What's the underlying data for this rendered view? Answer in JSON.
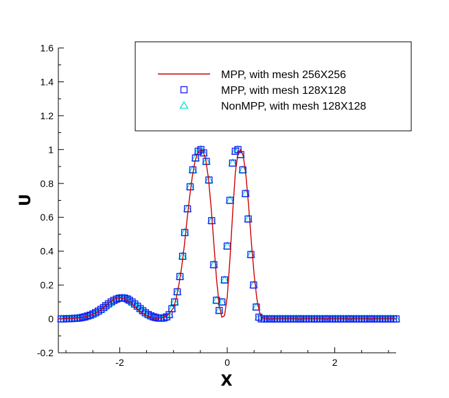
{
  "chart_data": {
    "type": "line",
    "title": "",
    "xlabel": "X",
    "ylabel": "U",
    "xlim": [
      -3.14159,
      3.14159
    ],
    "ylim": [
      -0.2,
      1.6
    ],
    "xticks": [
      -2,
      0,
      2
    ],
    "xtick_labels": [
      "-2",
      "0",
      "2"
    ],
    "yticks": [
      -0.2,
      0,
      0.2,
      0.4,
      0.6,
      0.8,
      1,
      1.2,
      1.4,
      1.6
    ],
    "ytick_labels": [
      "-0.2",
      "0",
      "0.2",
      "0.4",
      "0.6",
      "0.8",
      "1",
      "1.2",
      "1.4",
      "1.6"
    ],
    "grid": false,
    "legend_position": "top-right",
    "series": [
      {
        "name": "MPP, with mesh 256X256",
        "style": "line",
        "color": "#cc0000",
        "x": [
          -3.1416,
          -2.9,
          -2.7,
          -2.55,
          -2.4,
          -2.3,
          -2.2,
          -2.1,
          -2.0,
          -1.9,
          -1.8,
          -1.7,
          -1.6,
          -1.5,
          -1.4,
          -1.3,
          -1.2,
          -1.1,
          -1.0,
          -0.95,
          -0.9,
          -0.85,
          -0.8,
          -0.75,
          -0.7,
          -0.65,
          -0.6,
          -0.55,
          -0.5,
          -0.45,
          -0.4,
          -0.35,
          -0.3,
          -0.25,
          -0.2,
          -0.15,
          -0.1,
          -0.05,
          0.0,
          0.05,
          0.1,
          0.15,
          0.2,
          0.25,
          0.3,
          0.35,
          0.4,
          0.45,
          0.5,
          0.55,
          0.6,
          0.65,
          0.7,
          0.8,
          1.0,
          1.5,
          2.0,
          2.5,
          3.1416
        ],
        "y": [
          0.0,
          0.002,
          0.008,
          0.02,
          0.042,
          0.066,
          0.095,
          0.117,
          0.125,
          0.117,
          0.095,
          0.066,
          0.038,
          0.018,
          0.008,
          0.004,
          0.008,
          0.025,
          0.065,
          0.12,
          0.2,
          0.3,
          0.43,
          0.58,
          0.72,
          0.84,
          0.93,
          0.98,
          1.0,
          0.99,
          0.94,
          0.83,
          0.66,
          0.45,
          0.24,
          0.08,
          0.01,
          0.02,
          0.13,
          0.35,
          0.62,
          0.86,
          0.98,
          1.0,
          0.96,
          0.84,
          0.66,
          0.45,
          0.26,
          0.12,
          0.04,
          0.008,
          0.0,
          0.0,
          0.0,
          0.0,
          0.0,
          0.0,
          0.0
        ]
      },
      {
        "name": "MPP, with mesh 128X128",
        "style": "square",
        "color": "#1a1aee",
        "x": [
          -3.09,
          -3.04,
          -2.99,
          -2.94,
          -2.89,
          -2.84,
          -2.79,
          -2.74,
          -2.69,
          -2.65,
          -2.6,
          -2.55,
          -2.5,
          -2.45,
          -2.4,
          -2.35,
          -2.3,
          -2.26,
          -2.21,
          -2.16,
          -2.11,
          -2.06,
          -2.01,
          -1.96,
          -1.91,
          -1.86,
          -1.82,
          -1.77,
          -1.72,
          -1.67,
          -1.62,
          -1.57,
          -1.52,
          -1.47,
          -1.42,
          -1.37,
          -1.33,
          -1.28,
          -1.23,
          -1.18,
          -1.13,
          -1.08,
          -1.03,
          -0.98,
          -0.93,
          -0.88,
          -0.83,
          -0.79,
          -0.74,
          -0.69,
          -0.64,
          -0.59,
          -0.54,
          -0.49,
          -0.44,
          -0.39,
          -0.34,
          -0.29,
          -0.25,
          -0.2,
          -0.15,
          -0.1,
          -0.05,
          0.0,
          0.05,
          0.1,
          0.15,
          0.2,
          0.25,
          0.29,
          0.34,
          0.39,
          0.44,
          0.49,
          0.54,
          0.59,
          0.64,
          0.69,
          0.74,
          0.79,
          0.83,
          0.88,
          0.93,
          0.98,
          1.03,
          1.08,
          1.13,
          1.18,
          1.23,
          1.28,
          1.33,
          1.37,
          1.42,
          1.47,
          1.52,
          1.57,
          1.62,
          1.67,
          1.72,
          1.77,
          1.82,
          1.86,
          1.91,
          1.96,
          2.01,
          2.06,
          2.11,
          2.16,
          2.21,
          2.26,
          2.3,
          2.35,
          2.4,
          2.45,
          2.5,
          2.55,
          2.6,
          2.65,
          2.69,
          2.74,
          2.79,
          2.84,
          2.89,
          2.94,
          2.99,
          3.04,
          3.09,
          3.14
        ],
        "y": [
          0.0,
          0.0,
          0.001,
          0.001,
          0.002,
          0.003,
          0.004,
          0.006,
          0.009,
          0.012,
          0.017,
          0.022,
          0.029,
          0.037,
          0.046,
          0.056,
          0.067,
          0.078,
          0.089,
          0.1,
          0.109,
          0.117,
          0.122,
          0.124,
          0.123,
          0.118,
          0.11,
          0.1,
          0.088,
          0.075,
          0.061,
          0.048,
          0.036,
          0.026,
          0.018,
          0.012,
          0.008,
          0.005,
          0.004,
          0.006,
          0.012,
          0.025,
          0.06,
          0.1,
          0.16,
          0.25,
          0.37,
          0.51,
          0.65,
          0.78,
          0.88,
          0.95,
          0.99,
          1.0,
          0.98,
          0.93,
          0.82,
          0.58,
          0.32,
          0.11,
          0.05,
          0.1,
          0.23,
          0.43,
          0.7,
          0.92,
          0.99,
          1.0,
          0.97,
          0.88,
          0.74,
          0.59,
          0.38,
          0.2,
          0.07,
          0.01,
          0.0,
          0.0,
          0.0,
          0.0,
          0.0,
          0.0,
          0.0,
          0.0,
          0.0,
          0.0,
          0.0,
          0.0,
          0.0,
          0.0,
          0.0,
          0.0,
          0.0,
          0.0,
          0.0,
          0.0,
          0.0,
          0.0,
          0.0,
          0.0,
          0.0,
          0.0,
          0.0,
          0.0,
          0.0,
          0.0,
          0.0,
          0.0,
          0.0,
          0.0,
          0.0,
          0.0,
          0.0,
          0.0,
          0.0,
          0.0,
          0.0,
          0.0,
          0.0,
          0.0,
          0.0,
          0.0,
          0.0,
          0.0,
          0.0,
          0.0,
          0.0,
          0.0
        ]
      },
      {
        "name": "NonMPP, with mesh 128X128",
        "style": "triangle",
        "color": "#00e5e5",
        "x": [
          -3.09,
          -3.04,
          -2.99,
          -2.94,
          -2.89,
          -2.84,
          -2.79,
          -2.74,
          -2.69,
          -2.65,
          -2.6,
          -2.55,
          -2.5,
          -2.45,
          -2.4,
          -2.35,
          -2.3,
          -2.26,
          -2.21,
          -2.16,
          -2.11,
          -2.06,
          -2.01,
          -1.96,
          -1.91,
          -1.86,
          -1.82,
          -1.77,
          -1.72,
          -1.67,
          -1.62,
          -1.57,
          -1.52,
          -1.47,
          -1.42,
          -1.37,
          -1.33,
          -1.28,
          -1.23,
          -1.18,
          -1.13,
          -1.08,
          -1.03,
          -0.98,
          -0.93,
          -0.88,
          -0.83,
          -0.79,
          -0.74,
          -0.69,
          -0.64,
          -0.59,
          -0.54,
          -0.49,
          -0.44,
          -0.39,
          -0.34,
          -0.29,
          -0.25,
          -0.2,
          -0.15,
          -0.1,
          -0.05,
          0.0,
          0.05,
          0.1,
          0.15,
          0.2,
          0.25,
          0.29,
          0.34,
          0.39,
          0.44,
          0.49,
          0.54,
          0.59,
          0.64,
          0.69,
          0.74,
          0.79,
          0.83,
          0.88,
          0.93,
          0.98,
          1.03,
          1.08,
          1.13,
          1.18,
          1.23,
          1.28,
          1.33,
          1.37,
          1.42,
          1.47,
          1.52,
          1.57,
          1.62,
          1.67,
          1.72,
          1.77,
          1.82,
          1.86,
          1.91,
          1.96,
          2.01,
          2.06,
          2.11,
          2.16,
          2.21,
          2.26,
          2.3,
          2.35,
          2.4,
          2.45,
          2.5,
          2.55,
          2.6,
          2.65,
          2.69,
          2.74,
          2.79,
          2.84,
          2.89,
          2.94,
          2.99,
          3.04,
          3.09,
          3.14
        ],
        "y": [
          0.0,
          0.0,
          0.001,
          0.001,
          0.002,
          0.003,
          0.004,
          0.006,
          0.009,
          0.012,
          0.017,
          0.022,
          0.029,
          0.037,
          0.046,
          0.056,
          0.067,
          0.078,
          0.089,
          0.1,
          0.11,
          0.118,
          0.123,
          0.125,
          0.124,
          0.119,
          0.111,
          0.1,
          0.088,
          0.075,
          0.061,
          0.048,
          0.036,
          0.026,
          0.018,
          0.012,
          0.008,
          0.005,
          0.004,
          0.006,
          0.012,
          0.025,
          0.06,
          0.1,
          0.16,
          0.25,
          0.37,
          0.51,
          0.65,
          0.78,
          0.88,
          0.95,
          0.99,
          1.0,
          0.98,
          0.93,
          0.82,
          0.58,
          0.32,
          0.11,
          0.05,
          0.1,
          0.23,
          0.43,
          0.7,
          0.92,
          0.99,
          1.0,
          0.97,
          0.88,
          0.74,
          0.59,
          0.38,
          0.2,
          0.07,
          0.01,
          0.0,
          0.0,
          0.0,
          0.0,
          0.0,
          0.0,
          0.0,
          0.0,
          0.0,
          0.0,
          0.0,
          0.0,
          0.0,
          0.0,
          0.0,
          0.0,
          0.0,
          0.0,
          0.0,
          0.0,
          0.0,
          0.0,
          0.0,
          0.0,
          0.0,
          0.0,
          0.0,
          0.0,
          0.0,
          0.0,
          0.0,
          0.0,
          0.0,
          0.0,
          0.0,
          0.0,
          0.0,
          0.0,
          0.0,
          0.0,
          0.0,
          0.0,
          0.0,
          0.0,
          0.0,
          0.0,
          0.0,
          0.0,
          0.0,
          0.0,
          0.0,
          0.0
        ]
      }
    ]
  }
}
